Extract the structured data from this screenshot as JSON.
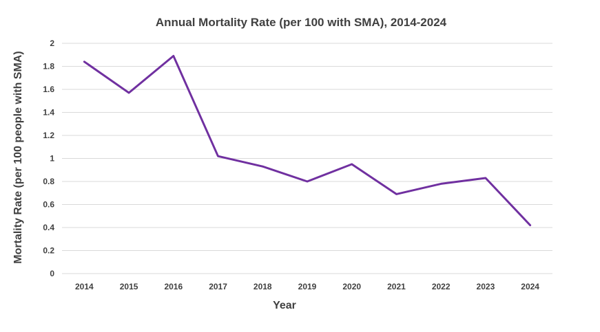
{
  "chart_data": {
    "type": "line",
    "title": "Annual Mortality Rate (per 100 with SMA), 2014-2024",
    "xlabel": "Year",
    "ylabel": "Mortality Rate (per 100 people with SMA)",
    "categories": [
      "2014",
      "2015",
      "2016",
      "2017",
      "2018",
      "2019",
      "2020",
      "2021",
      "2022",
      "2023",
      "2024"
    ],
    "series": [
      {
        "name": "Mortality Rate",
        "values": [
          1.84,
          1.57,
          1.89,
          1.02,
          0.93,
          0.8,
          0.95,
          0.69,
          0.78,
          0.83,
          0.42
        ]
      }
    ],
    "ylim": [
      0,
      2
    ],
    "yticks": [
      "0",
      "0.2",
      "0.4",
      "0.6",
      "0.8",
      "1",
      "1.2",
      "1.4",
      "1.6",
      "1.8",
      "2"
    ],
    "grid": true,
    "legend": "none",
    "colors": {
      "line": "#7030a0",
      "grid": "#d9d9d9",
      "text": "#404040"
    }
  }
}
